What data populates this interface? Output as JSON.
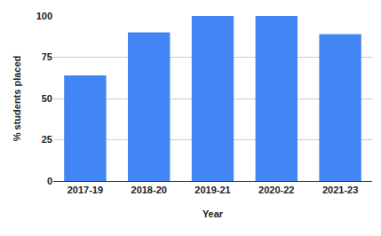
{
  "chart_data": {
    "type": "bar",
    "x_label": "Year",
    "y_label": "% students placed",
    "categories": [
      "2017-19",
      "2018-20",
      "2019-21",
      "2020-22",
      "2021-23"
    ],
    "values": [
      64,
      90,
      100,
      100,
      89
    ],
    "color": "#4285f4",
    "ylim": [
      0,
      100
    ],
    "yticks": [
      0,
      25,
      50,
      75,
      100
    ],
    "grid": true
  }
}
